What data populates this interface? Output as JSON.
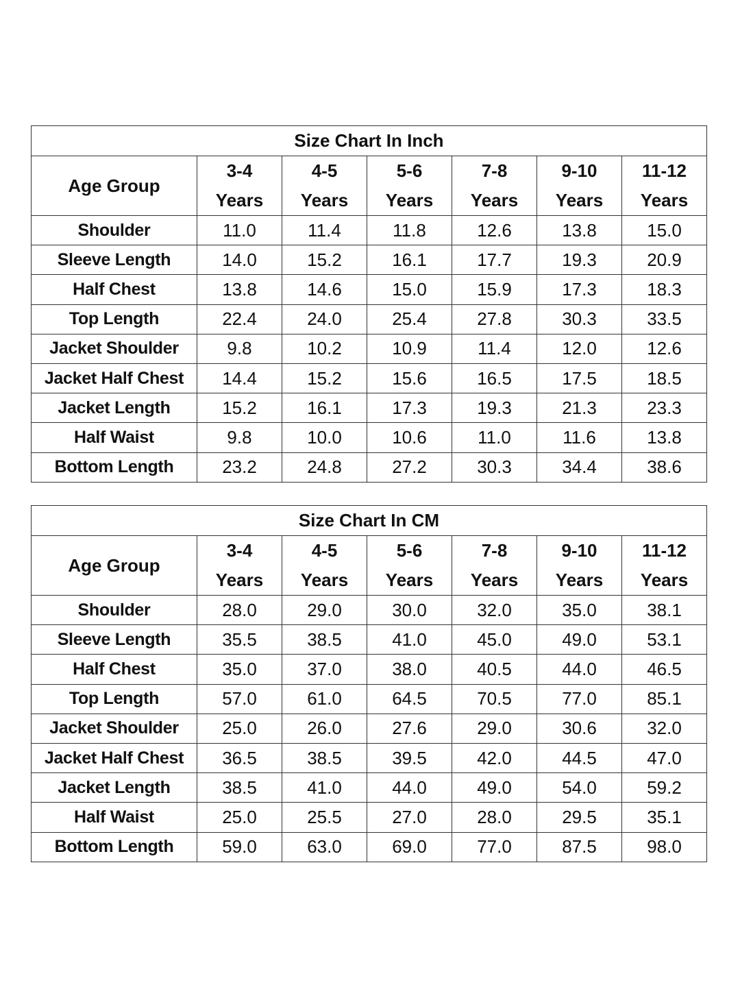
{
  "tables": [
    {
      "title": "Size Chart In Inch",
      "row_header": "Age Group",
      "columns": [
        {
          "range": "3-4",
          "unit": "Years"
        },
        {
          "range": "4-5",
          "unit": "Years"
        },
        {
          "range": "5-6",
          "unit": "Years"
        },
        {
          "range": "7-8",
          "unit": "Years"
        },
        {
          "range": "9-10",
          "unit": "Years"
        },
        {
          "range": "11-12",
          "unit": "Years"
        }
      ],
      "rows": [
        {
          "label": "Shoulder",
          "values": [
            "11.0",
            "11.4",
            "11.8",
            "12.6",
            "13.8",
            "15.0"
          ]
        },
        {
          "label": "Sleeve Length",
          "values": [
            "14.0",
            "15.2",
            "16.1",
            "17.7",
            "19.3",
            "20.9"
          ]
        },
        {
          "label": "Half Chest",
          "values": [
            "13.8",
            "14.6",
            "15.0",
            "15.9",
            "17.3",
            "18.3"
          ]
        },
        {
          "label": "Top Length",
          "values": [
            "22.4",
            "24.0",
            "25.4",
            "27.8",
            "30.3",
            "33.5"
          ]
        },
        {
          "label": "Jacket Shoulder",
          "values": [
            "9.8",
            "10.2",
            "10.9",
            "11.4",
            "12.0",
            "12.6"
          ]
        },
        {
          "label": "Jacket Half Chest",
          "values": [
            "14.4",
            "15.2",
            "15.6",
            "16.5",
            "17.5",
            "18.5"
          ]
        },
        {
          "label": "Jacket Length",
          "values": [
            "15.2",
            "16.1",
            "17.3",
            "19.3",
            "21.3",
            "23.3"
          ]
        },
        {
          "label": "Half Waist",
          "values": [
            "9.8",
            "10.0",
            "10.6",
            "11.0",
            "11.6",
            "13.8"
          ]
        },
        {
          "label": "Bottom Length",
          "values": [
            "23.2",
            "24.8",
            "27.2",
            "30.3",
            "34.4",
            "38.6"
          ]
        }
      ]
    },
    {
      "title": "Size Chart In CM",
      "row_header": "Age Group",
      "columns": [
        {
          "range": "3-4",
          "unit": "Years"
        },
        {
          "range": "4-5",
          "unit": "Years"
        },
        {
          "range": "5-6",
          "unit": "Years"
        },
        {
          "range": "7-8",
          "unit": "Years"
        },
        {
          "range": "9-10",
          "unit": "Years"
        },
        {
          "range": "11-12",
          "unit": "Years"
        }
      ],
      "rows": [
        {
          "label": "Shoulder",
          "values": [
            "28.0",
            "29.0",
            "30.0",
            "32.0",
            "35.0",
            "38.1"
          ]
        },
        {
          "label": "Sleeve Length",
          "values": [
            "35.5",
            "38.5",
            "41.0",
            "45.0",
            "49.0",
            "53.1"
          ]
        },
        {
          "label": "Half Chest",
          "values": [
            "35.0",
            "37.0",
            "38.0",
            "40.5",
            "44.0",
            "46.5"
          ]
        },
        {
          "label": "Top Length",
          "values": [
            "57.0",
            "61.0",
            "64.5",
            "70.5",
            "77.0",
            "85.1"
          ]
        },
        {
          "label": "Jacket Shoulder",
          "values": [
            "25.0",
            "26.0",
            "27.6",
            "29.0",
            "30.6",
            "32.0"
          ]
        },
        {
          "label": "Jacket Half Chest",
          "values": [
            "36.5",
            "38.5",
            "39.5",
            "42.0",
            "44.5",
            "47.0"
          ]
        },
        {
          "label": "Jacket Length",
          "values": [
            "38.5",
            "41.0",
            "44.0",
            "49.0",
            "54.0",
            "59.2"
          ]
        },
        {
          "label": "Half Waist",
          "values": [
            "25.0",
            "25.5",
            "27.0",
            "28.0",
            "29.5",
            "35.1"
          ]
        },
        {
          "label": "Bottom Length",
          "values": [
            "59.0",
            "63.0",
            "69.0",
            "77.0",
            "87.5",
            "98.0"
          ]
        }
      ]
    }
  ]
}
